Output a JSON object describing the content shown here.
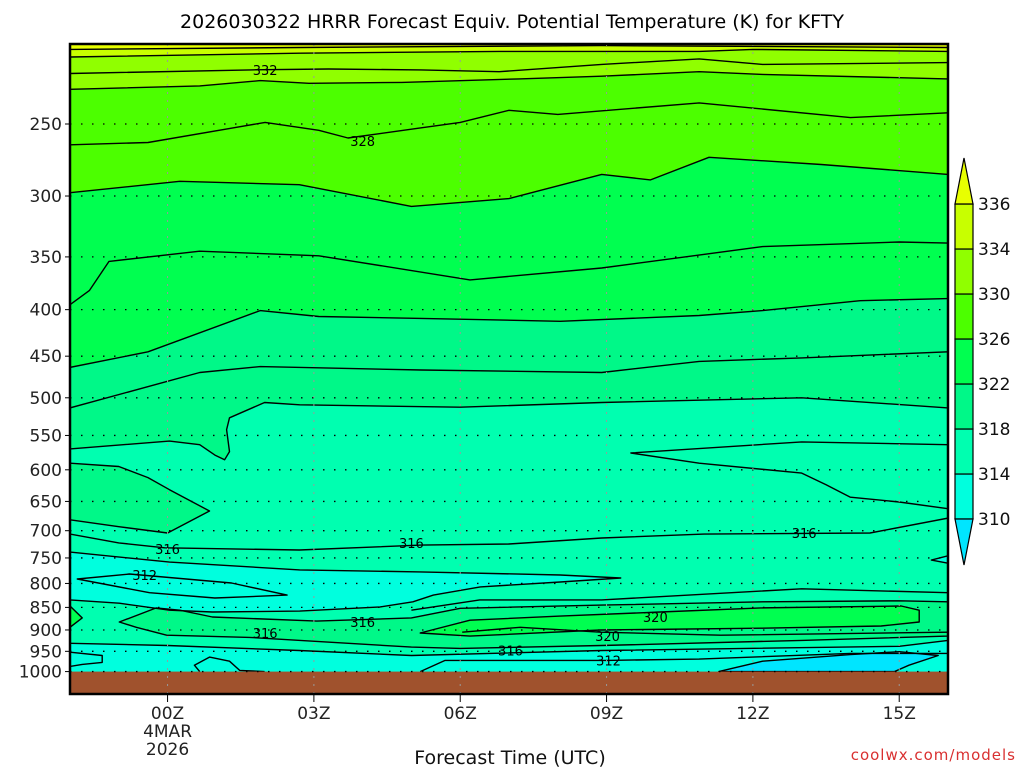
{
  "chart_data": {
    "type": "heatmap",
    "subtype": "filled-contour time-height cross section",
    "title": "2026030322 HRRR Forecast Equiv. Potential Temperature (K) for KFTY",
    "xlabel": "Forecast Time (UTC)",
    "ylabel": "",
    "credit": "coolwx.com/models",
    "x_unit": "hours from 00Z 4MAR2026",
    "xlim": [
      -2,
      16
    ],
    "ylim_hpa": [
      1046,
      204.5
    ],
    "y_scale": "log",
    "x_ticks": [
      {
        "value": 0,
        "label": "00Z",
        "sub1": "4MAR",
        "sub2": "2026"
      },
      {
        "value": 3,
        "label": "03Z"
      },
      {
        "value": 6,
        "label": "06Z"
      },
      {
        "value": 9,
        "label": "09Z"
      },
      {
        "value": 12,
        "label": "12Z"
      },
      {
        "value": 15,
        "label": "15Z"
      }
    ],
    "y_ticks": [
      250,
      300,
      350,
      400,
      450,
      500,
      550,
      600,
      650,
      700,
      750,
      800,
      850,
      900,
      950,
      1000
    ],
    "y_tick_labels": [
      "250",
      "300",
      "350",
      "400",
      "450",
      "500",
      "550",
      "600",
      "650",
      "700",
      "750",
      "800",
      "850",
      "900",
      "950",
      "1000"
    ],
    "ground_below_hpa": 1000,
    "colors": {
      "ground": "#a0522d",
      "lt310": "#00e5ff",
      "b310": "#00ffde",
      "b314": "#00ffb0",
      "b318": "#00f888",
      "b322": "#00ff50",
      "b326": "#4cff00",
      "b330": "#90ff00",
      "b334": "#c8ff00",
      "gt336": "#e8ff00"
    },
    "colorbar": {
      "levels": [
        "310",
        "314",
        "318",
        "322",
        "326",
        "330",
        "334",
        "336"
      ],
      "bands": [
        "b310",
        "b314",
        "b318",
        "b322",
        "b326",
        "b330",
        "b334"
      ],
      "under": "lt310",
      "over": "gt336"
    },
    "background_band": "gt336",
    "contours": [
      {
        "value": 336,
        "fill_below": "b334",
        "points": [
          [
            -2,
            207
          ],
          [
            2.7,
            206
          ],
          [
            8.9,
            205
          ],
          [
            16,
            206
          ]
        ]
      },
      {
        "value": 334,
        "fill_below": "b330",
        "points": [
          [
            -2,
            211
          ],
          [
            2.7,
            209
          ],
          [
            6.8,
            208
          ],
          [
            10.9,
            208
          ],
          [
            12,
            207
          ],
          [
            16,
            208
          ]
        ]
      },
      {
        "value": 332,
        "points": [
          [
            -2,
            220
          ],
          [
            1.7,
            218
          ],
          [
            3.3,
            217.5
          ],
          [
            5.2,
            218
          ],
          [
            6.8,
            219
          ],
          [
            8.9,
            215
          ],
          [
            10.9,
            212
          ],
          [
            12.2,
            215
          ],
          [
            16,
            214
          ]
        ]
      },
      {
        "value": 330,
        "fill_below": "b326",
        "points": [
          [
            -2,
            229
          ],
          [
            0.66,
            227
          ],
          [
            1.9,
            224
          ],
          [
            2.9,
            225.5
          ],
          [
            4.8,
            225
          ],
          [
            7.2,
            223
          ],
          [
            8.9,
            221.5
          ],
          [
            10.9,
            219
          ],
          [
            12.2,
            220.5
          ],
          [
            16,
            223
          ]
        ]
      },
      {
        "value": 328,
        "points": [
          [
            -2,
            263.5
          ],
          [
            -0.4,
            262
          ],
          [
            2,
            249
          ],
          [
            3.1,
            254
          ],
          [
            3.7,
            259
          ],
          [
            6,
            249
          ],
          [
            7,
            241.5
          ],
          [
            8,
            244
          ],
          [
            10.9,
            237
          ],
          [
            14,
            246
          ],
          [
            16,
            243
          ]
        ]
      },
      {
        "value": 326,
        "fill_below": "b322",
        "points": [
          [
            -2,
            297.5
          ],
          [
            0.25,
            289
          ],
          [
            2.7,
            291.5
          ],
          [
            5,
            308
          ],
          [
            7,
            302
          ],
          [
            8.9,
            284
          ],
          [
            9.9,
            288
          ],
          [
            11.1,
            272
          ],
          [
            13.4,
            277
          ],
          [
            16,
            284
          ]
        ]
      },
      {
        "value": 324,
        "points": [
          [
            -2,
            395
          ],
          [
            -1.6,
            381
          ],
          [
            -1.2,
            354
          ],
          [
            0.66,
            345
          ],
          [
            3.1,
            349
          ],
          [
            6.2,
            371
          ],
          [
            8.9,
            360
          ],
          [
            12.2,
            341
          ],
          [
            15,
            337
          ],
          [
            16,
            338
          ]
        ]
      },
      {
        "value": 322,
        "fill_below": "b318",
        "points": [
          [
            -2,
            463
          ],
          [
            -0.4,
            445
          ],
          [
            1.9,
            401
          ],
          [
            3.1,
            407
          ],
          [
            5.2,
            409
          ],
          [
            8.05,
            412
          ],
          [
            10.9,
            406
          ],
          [
            12.2,
            401
          ],
          [
            14.2,
            391
          ],
          [
            16,
            389
          ]
        ]
      },
      {
        "value": 320,
        "points": [
          [
            -2,
            513
          ],
          [
            0.66,
            469
          ],
          [
            1.9,
            462
          ],
          [
            5.2,
            466
          ],
          [
            8.9,
            469
          ],
          [
            10.9,
            456
          ],
          [
            13,
            452
          ],
          [
            16,
            445
          ]
        ]
      },
      {
        "value": 318,
        "fill_below": "b314",
        "points": [
          [
            -2,
            569
          ],
          [
            0.04,
            558
          ],
          [
            0.66,
            563
          ],
          [
            0.97,
            578
          ],
          [
            1.17,
            585
          ],
          [
            1.27,
            573
          ],
          [
            1.21,
            542
          ],
          [
            1.27,
            526
          ],
          [
            1.99,
            506
          ],
          [
            2.71,
            509
          ],
          [
            6,
            512
          ],
          [
            8.9,
            506
          ],
          [
            13,
            500
          ],
          [
            16,
            513
          ]
        ]
      },
      {
        "value": 318,
        "closed": true,
        "fill": "b318",
        "points": [
          [
            -2,
            590
          ],
          [
            -1,
            595
          ],
          [
            -0.4,
            612
          ],
          [
            0.04,
            631
          ],
          [
            0.86,
            666
          ],
          [
            0,
            704
          ],
          [
            -1,
            693
          ],
          [
            -2,
            681
          ]
        ]
      },
      {
        "value": 318,
        "points": [
          [
            16,
            563
          ],
          [
            13,
            559
          ],
          [
            9.5,
            575
          ],
          [
            10.9,
            590
          ],
          [
            13,
            605
          ],
          [
            13.5,
            623
          ],
          [
            14,
            643
          ],
          [
            15,
            651
          ],
          [
            16,
            662
          ]
        ]
      },
      {
        "value": 316,
        "points": [
          [
            -2,
            706
          ],
          [
            -1,
            722
          ],
          [
            -0.06,
            731
          ],
          [
            2.7,
            735
          ],
          [
            5.2,
            726
          ],
          [
            7,
            724
          ],
          [
            8.9,
            713
          ],
          [
            11,
            706
          ],
          [
            14.4,
            704
          ],
          [
            16,
            678
          ]
        ]
      },
      {
        "value": 314,
        "closed": true,
        "fill": "b310",
        "points": [
          [
            -2,
            739
          ],
          [
            0.04,
            758
          ],
          [
            2.71,
            773
          ],
          [
            5.18,
            777
          ],
          [
            8.05,
            783
          ],
          [
            9.29,
            789
          ],
          [
            8.05,
            797
          ],
          [
            6.41,
            807
          ],
          [
            5.45,
            824
          ],
          [
            5.03,
            838
          ],
          [
            4.36,
            849
          ],
          [
            2.71,
            858
          ],
          [
            0.92,
            860
          ],
          [
            0.04,
            856
          ],
          [
            -0.99,
            841
          ],
          [
            -2,
            834
          ]
        ]
      },
      {
        "value": 312,
        "closed": true,
        "points": [
          [
            -1.85,
            791
          ],
          [
            -0.78,
            781
          ],
          [
            1.31,
            799
          ],
          [
            2.45,
            824
          ],
          [
            0.97,
            830
          ],
          [
            -0.37,
            819
          ],
          [
            -1.85,
            791
          ]
        ]
      },
      {
        "value": 314,
        "points": [
          [
            5,
            856
          ],
          [
            6.4,
            834
          ],
          [
            8.9,
            834
          ],
          [
            13,
            811
          ],
          [
            16,
            819
          ]
        ]
      },
      {
        "value": 318,
        "closed": true,
        "fill": "b318",
        "points": [
          [
            -0.99,
            882
          ],
          [
            -0.23,
            851
          ],
          [
            0.25,
            856
          ],
          [
            0.92,
            871
          ],
          [
            3.06,
            880
          ],
          [
            5,
            873
          ],
          [
            6,
            852
          ],
          [
            8.9,
            845
          ],
          [
            12.2,
            838
          ],
          [
            15,
            836
          ],
          [
            16,
            838
          ],
          [
            16,
            914
          ],
          [
            13,
            924
          ],
          [
            8.9,
            936
          ],
          [
            6,
            943
          ],
          [
            5,
            940
          ],
          [
            1.68,
            917
          ],
          [
            -0.02,
            912
          ],
          [
            -0.64,
            894
          ],
          [
            -0.99,
            882
          ]
        ]
      },
      {
        "value": 320,
        "closed": true,
        "fill": "b322",
        "points": [
          [
            5.18,
            907
          ],
          [
            6.2,
            878
          ],
          [
            8.05,
            869
          ],
          [
            10.1,
            860
          ],
          [
            12.16,
            851
          ],
          [
            15.04,
            847
          ],
          [
            15.41,
            856
          ],
          [
            15.41,
            882
          ],
          [
            14.63,
            891
          ],
          [
            12.16,
            896
          ],
          [
            8.88,
            900
          ],
          [
            6.2,
            914
          ],
          [
            5.18,
            907
          ]
        ]
      },
      {
        "value": 320,
        "points": [
          [
            6.04,
            905
          ],
          [
            7.23,
            894
          ],
          [
            8.88,
            905
          ],
          [
            11.34,
            912
          ],
          [
            16,
            905
          ]
        ]
      },
      {
        "value": 322,
        "closed": true,
        "fill": "b322",
        "points": [
          [
            -2,
            847
          ],
          [
            -1.75,
            873
          ],
          [
            -2,
            894
          ]
        ]
      },
      {
        "value": 318,
        "closed": true,
        "fill": "b318",
        "points": [
          [
            -2,
            952
          ],
          [
            -1.34,
            960
          ],
          [
            -1.34,
            977
          ],
          [
            -1.75,
            982
          ],
          [
            -2,
            987
          ]
        ]
      },
      {
        "value": 314,
        "fill_below": "b310",
        "points": [
          [
            -2,
            931
          ],
          [
            0,
            936
          ],
          [
            2.7,
            948
          ],
          [
            5,
            960
          ],
          [
            8.9,
            948
          ],
          [
            15,
            938
          ],
          [
            16,
            924
          ]
        ]
      },
      {
        "value": 312,
        "points": [
          [
            5.18,
            1000
          ],
          [
            5.69,
            972
          ],
          [
            7.23,
            972
          ],
          [
            9,
            972
          ],
          [
            10.9,
            969
          ],
          [
            14,
            955
          ],
          [
            16,
            955
          ]
        ]
      },
      {
        "value": 310,
        "closed": true,
        "fill": "lt310",
        "points": [
          [
            11.3,
            1000
          ],
          [
            12.2,
            974
          ],
          [
            14,
            958
          ],
          [
            15,
            951
          ],
          [
            15.8,
            960
          ],
          [
            15.2,
            984
          ],
          [
            14.9,
            1000
          ]
        ]
      },
      {
        "value": 314,
        "closed": true,
        "fill": "b310",
        "points": [
          [
            16,
            746
          ],
          [
            15.66,
            754
          ],
          [
            16,
            760
          ]
        ]
      },
      {
        "value": 314,
        "points": [
          [
            0.66,
            1000
          ],
          [
            0.55,
            984
          ],
          [
            0.86,
            964
          ],
          [
            1.27,
            974
          ],
          [
            1.48,
            997
          ],
          [
            1.99,
            1000
          ]
        ]
      }
    ],
    "contour_labels": [
      {
        "text": "332",
        "x": 2,
        "p": 218
      },
      {
        "text": "328",
        "x": 4,
        "p": 261
      },
      {
        "text": "316",
        "x": 0,
        "p": 733
      },
      {
        "text": "316",
        "x": 5,
        "p": 722
      },
      {
        "text": "316",
        "x": 13.05,
        "p": 704
      },
      {
        "text": "312",
        "x": -0.47,
        "p": 783
      },
      {
        "text": "316",
        "x": 2,
        "p": 907
      },
      {
        "text": "316",
        "x": 4,
        "p": 882
      },
      {
        "text": "320",
        "x": 10,
        "p": 871
      },
      {
        "text": "320",
        "x": 9.02,
        "p": 914
      },
      {
        "text": "316",
        "x": 7.03,
        "p": 948
      },
      {
        "text": "312",
        "x": 9.04,
        "p": 972
      }
    ]
  }
}
